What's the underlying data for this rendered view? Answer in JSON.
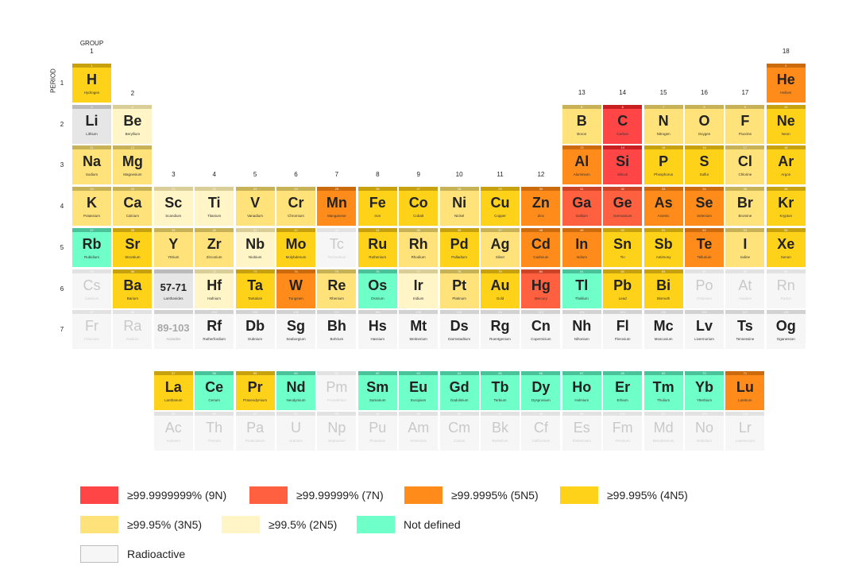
{
  "header": {
    "group_label": "GROUP",
    "period_label": "PERIOD"
  },
  "colors": {
    "9N": "#ff4545",
    "7N": "#ff6040",
    "5N": "#ff8c1a",
    "4N": "#ffd21a",
    "3N": "#ffe27a",
    "2N": "#fff5c6",
    "ND": "#6fffc8",
    "RA": "#f6f6f6",
    "LANTH": "#e6e6e6"
  },
  "strips": {
    "9N": "#c82020",
    "7N": "#cc4326",
    "5N": "#cc6a0e",
    "4N": "#c8a20e",
    "3N": "#c8b258",
    "2N": "#d9cd98",
    "ND": "#4ac39b",
    "RA": "#d2d2d2",
    "LANTH": "#bbbbbb"
  },
  "groups": [
    "1",
    "2",
    "3",
    "4",
    "5",
    "6",
    "7",
    "8",
    "9",
    "10",
    "11",
    "12",
    "13",
    "14",
    "15",
    "16",
    "17",
    "18"
  ],
  "periods": [
    "1",
    "2",
    "3",
    "4",
    "5",
    "6",
    "7"
  ],
  "elements": [
    {
      "z": "1",
      "sym": "H",
      "name": "Hydrogen",
      "g": 1,
      "p": 1,
      "c": "4N"
    },
    {
      "z": "2",
      "sym": "He",
      "name": "Helium",
      "g": 18,
      "p": 1,
      "c": "5N"
    },
    {
      "z": "3",
      "sym": "Li",
      "name": "Lithium",
      "g": 1,
      "p": 2,
      "c": "LANTH"
    },
    {
      "z": "4",
      "sym": "Be",
      "name": "Beryllium",
      "g": 2,
      "p": 2,
      "c": "2N"
    },
    {
      "z": "5",
      "sym": "B",
      "name": "Boron",
      "g": 13,
      "p": 2,
      "c": "3N"
    },
    {
      "z": "6",
      "sym": "C",
      "name": "Carbon",
      "g": 14,
      "p": 2,
      "c": "9N"
    },
    {
      "z": "7",
      "sym": "N",
      "name": "Nitrogen",
      "g": 15,
      "p": 2,
      "c": "3N"
    },
    {
      "z": "8",
      "sym": "O",
      "name": "Oxygen",
      "g": 16,
      "p": 2,
      "c": "3N"
    },
    {
      "z": "9",
      "sym": "F",
      "name": "Fluorine",
      "g": 17,
      "p": 2,
      "c": "3N"
    },
    {
      "z": "10",
      "sym": "Ne",
      "name": "Neon",
      "g": 18,
      "p": 2,
      "c": "4N"
    },
    {
      "z": "11",
      "sym": "Na",
      "name": "Sodium",
      "g": 1,
      "p": 3,
      "c": "3N"
    },
    {
      "z": "12",
      "sym": "Mg",
      "name": "Magnesium",
      "g": 2,
      "p": 3,
      "c": "3N"
    },
    {
      "z": "13",
      "sym": "Al",
      "name": "Aluminium",
      "g": 13,
      "p": 3,
      "c": "5N"
    },
    {
      "z": "14",
      "sym": "Si",
      "name": "Silicon",
      "g": 14,
      "p": 3,
      "c": "9N"
    },
    {
      "z": "15",
      "sym": "P",
      "name": "Phosphorus",
      "g": 15,
      "p": 3,
      "c": "4N"
    },
    {
      "z": "16",
      "sym": "S",
      "name": "Sulfur",
      "g": 16,
      "p": 3,
      "c": "4N"
    },
    {
      "z": "17",
      "sym": "Cl",
      "name": "Chlorine",
      "g": 17,
      "p": 3,
      "c": "3N"
    },
    {
      "z": "18",
      "sym": "Ar",
      "name": "Argon",
      "g": 18,
      "p": 3,
      "c": "4N"
    },
    {
      "z": "19",
      "sym": "K",
      "name": "Potassium",
      "g": 1,
      "p": 4,
      "c": "3N"
    },
    {
      "z": "20",
      "sym": "Ca",
      "name": "Calcium",
      "g": 2,
      "p": 4,
      "c": "3N"
    },
    {
      "z": "21",
      "sym": "Sc",
      "name": "Scandium",
      "g": 3,
      "p": 4,
      "c": "2N"
    },
    {
      "z": "22",
      "sym": "Ti",
      "name": "Titanium",
      "g": 4,
      "p": 4,
      "c": "2N"
    },
    {
      "z": "23",
      "sym": "V",
      "name": "Vanadium",
      "g": 5,
      "p": 4,
      "c": "3N"
    },
    {
      "z": "24",
      "sym": "Cr",
      "name": "Chromium",
      "g": 6,
      "p": 4,
      "c": "3N"
    },
    {
      "z": "25",
      "sym": "Mn",
      "name": "Manganese",
      "g": 7,
      "p": 4,
      "c": "5N"
    },
    {
      "z": "26",
      "sym": "Fe",
      "name": "Iron",
      "g": 8,
      "p": 4,
      "c": "4N"
    },
    {
      "z": "27",
      "sym": "Co",
      "name": "Cobalt",
      "g": 9,
      "p": 4,
      "c": "4N"
    },
    {
      "z": "28",
      "sym": "Ni",
      "name": "Nickel",
      "g": 10,
      "p": 4,
      "c": "3N"
    },
    {
      "z": "29",
      "sym": "Cu",
      "name": "Copper",
      "g": 11,
      "p": 4,
      "c": "4N"
    },
    {
      "z": "30",
      "sym": "Zn",
      "name": "Zinc",
      "g": 12,
      "p": 4,
      "c": "5N"
    },
    {
      "z": "31",
      "sym": "Ga",
      "name": "Gallium",
      "g": 13,
      "p": 4,
      "c": "7N"
    },
    {
      "z": "32",
      "sym": "Ge",
      "name": "Germanium",
      "g": 14,
      "p": 4,
      "c": "7N"
    },
    {
      "z": "33",
      "sym": "As",
      "name": "Arsenic",
      "g": 15,
      "p": 4,
      "c": "5N"
    },
    {
      "z": "34",
      "sym": "Se",
      "name": "Selenium",
      "g": 16,
      "p": 4,
      "c": "5N"
    },
    {
      "z": "35",
      "sym": "Br",
      "name": "Bromine",
      "g": 17,
      "p": 4,
      "c": "3N"
    },
    {
      "z": "36",
      "sym": "Kr",
      "name": "Krypton",
      "g": 18,
      "p": 4,
      "c": "4N"
    },
    {
      "z": "37",
      "sym": "Rb",
      "name": "Rubidium",
      "g": 1,
      "p": 5,
      "c": "ND"
    },
    {
      "z": "38",
      "sym": "Sr",
      "name": "Strontium",
      "g": 2,
      "p": 5,
      "c": "4N"
    },
    {
      "z": "39",
      "sym": "Y",
      "name": "Yttrium",
      "g": 3,
      "p": 5,
      "c": "3N"
    },
    {
      "z": "40",
      "sym": "Zr",
      "name": "Zirconium",
      "g": 4,
      "p": 5,
      "c": "3N"
    },
    {
      "z": "41",
      "sym": "Nb",
      "name": "Niobium",
      "g": 5,
      "p": 5,
      "c": "2N"
    },
    {
      "z": "42",
      "sym": "Mo",
      "name": "Molybdenum",
      "g": 6,
      "p": 5,
      "c": "4N"
    },
    {
      "z": "43",
      "sym": "Tc",
      "name": "Technetium",
      "g": 7,
      "p": 5,
      "c": "RA"
    },
    {
      "z": "44",
      "sym": "Ru",
      "name": "Ruthenium",
      "g": 8,
      "p": 5,
      "c": "4N"
    },
    {
      "z": "45",
      "sym": "Rh",
      "name": "Rhodium",
      "g": 9,
      "p": 5,
      "c": "3N"
    },
    {
      "z": "46",
      "sym": "Pd",
      "name": "Palladium",
      "g": 10,
      "p": 5,
      "c": "4N"
    },
    {
      "z": "47",
      "sym": "Ag",
      "name": "Silver",
      "g": 11,
      "p": 5,
      "c": "3N"
    },
    {
      "z": "48",
      "sym": "Cd",
      "name": "Cadmium",
      "g": 12,
      "p": 5,
      "c": "5N"
    },
    {
      "z": "49",
      "sym": "In",
      "name": "Indium",
      "g": 13,
      "p": 5,
      "c": "5N"
    },
    {
      "z": "50",
      "sym": "Sn",
      "name": "Tin",
      "g": 14,
      "p": 5,
      "c": "4N"
    },
    {
      "z": "51",
      "sym": "Sb",
      "name": "Antimony",
      "g": 15,
      "p": 5,
      "c": "4N"
    },
    {
      "z": "52",
      "sym": "Te",
      "name": "Tellurium",
      "g": 16,
      "p": 5,
      "c": "5N"
    },
    {
      "z": "53",
      "sym": "I",
      "name": "Iodine",
      "g": 17,
      "p": 5,
      "c": "3N"
    },
    {
      "z": "54",
      "sym": "Xe",
      "name": "Xenon",
      "g": 18,
      "p": 5,
      "c": "4N"
    },
    {
      "z": "55",
      "sym": "Cs",
      "name": "Caesium",
      "g": 1,
      "p": 6,
      "c": "RA"
    },
    {
      "z": "56",
      "sym": "Ba",
      "name": "Barium",
      "g": 2,
      "p": 6,
      "c": "4N"
    },
    {
      "z": "",
      "sym": "57-71",
      "name": "Lanthanides",
      "g": 3,
      "p": 6,
      "c": "LANTH",
      "ref": true
    },
    {
      "z": "72",
      "sym": "Hf",
      "name": "Hafnium",
      "g": 4,
      "p": 6,
      "c": "2N"
    },
    {
      "z": "73",
      "sym": "Ta",
      "name": "Tantalum",
      "g": 5,
      "p": 6,
      "c": "4N"
    },
    {
      "z": "74",
      "sym": "W",
      "name": "Tungsten",
      "g": 6,
      "p": 6,
      "c": "5N"
    },
    {
      "z": "75",
      "sym": "Re",
      "name": "Rhenium",
      "g": 7,
      "p": 6,
      "c": "3N"
    },
    {
      "z": "76",
      "sym": "Os",
      "name": "Osmium",
      "g": 8,
      "p": 6,
      "c": "ND"
    },
    {
      "z": "77",
      "sym": "Ir",
      "name": "Iridium",
      "g": 9,
      "p": 6,
      "c": "2N"
    },
    {
      "z": "78",
      "sym": "Pt",
      "name": "Platinum",
      "g": 10,
      "p": 6,
      "c": "3N"
    },
    {
      "z": "79",
      "sym": "Au",
      "name": "Gold",
      "g": 11,
      "p": 6,
      "c": "4N"
    },
    {
      "z": "80",
      "sym": "Hg",
      "name": "Mercury",
      "g": 12,
      "p": 6,
      "c": "7N"
    },
    {
      "z": "81",
      "sym": "Tl",
      "name": "Thallium",
      "g": 13,
      "p": 6,
      "c": "ND"
    },
    {
      "z": "82",
      "sym": "Pb",
      "name": "Lead",
      "g": 14,
      "p": 6,
      "c": "4N"
    },
    {
      "z": "83",
      "sym": "Bi",
      "name": "Bismuth",
      "g": 15,
      "p": 6,
      "c": "4N"
    },
    {
      "z": "84",
      "sym": "Po",
      "name": "Polonium",
      "g": 16,
      "p": 6,
      "c": "RA"
    },
    {
      "z": "85",
      "sym": "At",
      "name": "Astatine",
      "g": 17,
      "p": 6,
      "c": "RA"
    },
    {
      "z": "86",
      "sym": "Rn",
      "name": "Radon",
      "g": 18,
      "p": 6,
      "c": "RA"
    },
    {
      "z": "87",
      "sym": "Fr",
      "name": "Francium",
      "g": 1,
      "p": 7,
      "c": "RA"
    },
    {
      "z": "88",
      "sym": "Ra",
      "name": "Radium",
      "g": 2,
      "p": 7,
      "c": "RA"
    },
    {
      "z": "",
      "sym": "89-103",
      "name": "Actinides",
      "g": 3,
      "p": 7,
      "c": "RA",
      "ref": true
    },
    {
      "z": "104",
      "sym": "Rf",
      "name": "Rutherfordium",
      "g": 4,
      "p": 7,
      "c": "RA",
      "dark": true
    },
    {
      "z": "105",
      "sym": "Db",
      "name": "Dubnium",
      "g": 5,
      "p": 7,
      "c": "RA",
      "dark": true
    },
    {
      "z": "106",
      "sym": "Sg",
      "name": "Seaborgium",
      "g": 6,
      "p": 7,
      "c": "RA",
      "dark": true
    },
    {
      "z": "107",
      "sym": "Bh",
      "name": "Bohrium",
      "g": 7,
      "p": 7,
      "c": "RA",
      "dark": true
    },
    {
      "z": "108",
      "sym": "Hs",
      "name": "Hassium",
      "g": 8,
      "p": 7,
      "c": "RA",
      "dark": true
    },
    {
      "z": "109",
      "sym": "Mt",
      "name": "Meitnerium",
      "g": 9,
      "p": 7,
      "c": "RA",
      "dark": true
    },
    {
      "z": "110",
      "sym": "Ds",
      "name": "Darmstadtium",
      "g": 10,
      "p": 7,
      "c": "RA",
      "dark": true
    },
    {
      "z": "111",
      "sym": "Rg",
      "name": "Roentgenium",
      "g": 11,
      "p": 7,
      "c": "RA",
      "dark": true
    },
    {
      "z": "112",
      "sym": "Cn",
      "name": "Copernicium",
      "g": 12,
      "p": 7,
      "c": "RA",
      "dark": true
    },
    {
      "z": "113",
      "sym": "Nh",
      "name": "Nihonium",
      "g": 13,
      "p": 7,
      "c": "RA",
      "dark": true
    },
    {
      "z": "114",
      "sym": "Fl",
      "name": "Flerovium",
      "g": 14,
      "p": 7,
      "c": "RA",
      "dark": true
    },
    {
      "z": "115",
      "sym": "Mc",
      "name": "Moscovium",
      "g": 15,
      "p": 7,
      "c": "RA",
      "dark": true
    },
    {
      "z": "116",
      "sym": "Lv",
      "name": "Livermorium",
      "g": 16,
      "p": 7,
      "c": "RA",
      "dark": true
    },
    {
      "z": "117",
      "sym": "Ts",
      "name": "Tennessine",
      "g": 17,
      "p": 7,
      "c": "RA",
      "dark": true
    },
    {
      "z": "118",
      "sym": "Og",
      "name": "Oganesson",
      "g": 18,
      "p": 7,
      "c": "RA",
      "dark": true
    }
  ],
  "lanthanides": [
    {
      "z": "57",
      "sym": "La",
      "name": "Lanthanum",
      "c": "4N"
    },
    {
      "z": "58",
      "sym": "Ce",
      "name": "Cerium",
      "c": "ND"
    },
    {
      "z": "59",
      "sym": "Pr",
      "name": "Praseodymium",
      "c": "4N"
    },
    {
      "z": "60",
      "sym": "Nd",
      "name": "Neodymium",
      "c": "ND"
    },
    {
      "z": "61",
      "sym": "Pm",
      "name": "Promethium",
      "c": "RA"
    },
    {
      "z": "62",
      "sym": "Sm",
      "name": "Samarium",
      "c": "ND"
    },
    {
      "z": "63",
      "sym": "Eu",
      "name": "Europium",
      "c": "ND"
    },
    {
      "z": "64",
      "sym": "Gd",
      "name": "Gadolinium",
      "c": "ND"
    },
    {
      "z": "65",
      "sym": "Tb",
      "name": "Terbium",
      "c": "ND"
    },
    {
      "z": "66",
      "sym": "Dy",
      "name": "Dysprosium",
      "c": "ND"
    },
    {
      "z": "67",
      "sym": "Ho",
      "name": "Holmium",
      "c": "ND"
    },
    {
      "z": "68",
      "sym": "Er",
      "name": "Erbium",
      "c": "ND"
    },
    {
      "z": "69",
      "sym": "Tm",
      "name": "Thulium",
      "c": "ND"
    },
    {
      "z": "70",
      "sym": "Yb",
      "name": "Ytterbium",
      "c": "ND"
    },
    {
      "z": "71",
      "sym": "Lu",
      "name": "Lutetium",
      "c": "5N"
    }
  ],
  "actinides": [
    {
      "z": "89",
      "sym": "Ac",
      "name": "Actinium",
      "c": "RA"
    },
    {
      "z": "90",
      "sym": "Th",
      "name": "Thorium",
      "c": "RA"
    },
    {
      "z": "91",
      "sym": "Pa",
      "name": "Protactinium",
      "c": "RA"
    },
    {
      "z": "92",
      "sym": "U",
      "name": "Uranium",
      "c": "RA"
    },
    {
      "z": "93",
      "sym": "Np",
      "name": "Neptunium",
      "c": "RA"
    },
    {
      "z": "94",
      "sym": "Pu",
      "name": "Plutonium",
      "c": "RA"
    },
    {
      "z": "95",
      "sym": "Am",
      "name": "Americium",
      "c": "RA"
    },
    {
      "z": "96",
      "sym": "Cm",
      "name": "Curium",
      "c": "RA"
    },
    {
      "z": "97",
      "sym": "Bk",
      "name": "Berkelium",
      "c": "RA"
    },
    {
      "z": "98",
      "sym": "Cf",
      "name": "Californium",
      "c": "RA"
    },
    {
      "z": "99",
      "sym": "Es",
      "name": "Einsteinium",
      "c": "RA"
    },
    {
      "z": "100",
      "sym": "Fm",
      "name": "Fermium",
      "c": "RA"
    },
    {
      "z": "101",
      "sym": "Md",
      "name": "Mendelevium",
      "c": "RA"
    },
    {
      "z": "102",
      "sym": "No",
      "name": "Nobelium",
      "c": "RA"
    },
    {
      "z": "103",
      "sym": "Lr",
      "name": "Lawrencium",
      "c": "RA"
    }
  ],
  "legend": [
    {
      "c": "9N",
      "label": "≥99.9999999% (9N)"
    },
    {
      "c": "7N",
      "label": "≥99.99999% (7N)"
    },
    {
      "c": "5N",
      "label": "≥99.9995% (5N5)"
    },
    {
      "c": "4N",
      "label": "≥99.995% (4N5)"
    },
    {
      "c": "3N",
      "label": "≥99.95% (3N5)"
    },
    {
      "c": "2N",
      "label": "≥99.5% (2N5)"
    },
    {
      "c": "ND",
      "label": "Not defined"
    },
    {
      "c": "RA",
      "label": "Radioactive"
    }
  ]
}
